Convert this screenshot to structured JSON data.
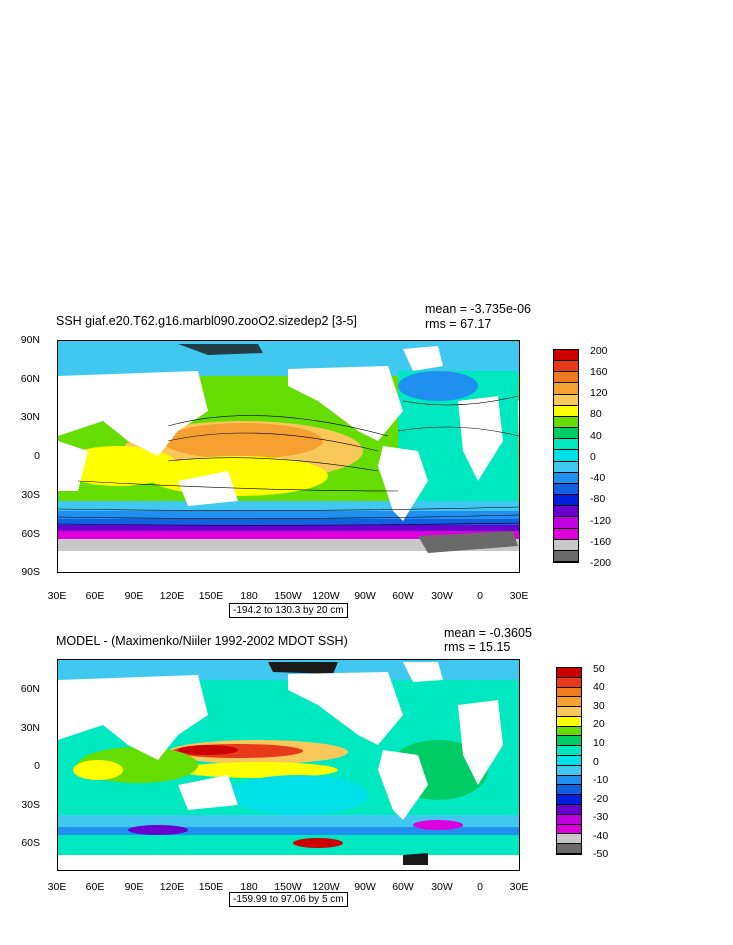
{
  "panels": [
    {
      "title": "SSH giaf.e20.T62.g16.marbl090.zooO2.sizedep2 [3-5]",
      "mean": "mean = -3.735e-06",
      "rms": "rms = 67.17",
      "yticks": [
        "90N",
        "60N",
        "30N",
        "0",
        "30S",
        "60S",
        "90S"
      ],
      "xticks": [
        "30E",
        "60E",
        "90E",
        "120E",
        "150E",
        "180",
        "150W",
        "120W",
        "90W",
        "60W",
        "30W",
        "0",
        "30E"
      ],
      "range_label": "-194.2 to 130.3 by 20 cm",
      "colorbar_labels": [
        "200",
        "160",
        "120",
        "80",
        "40",
        "0",
        "-40",
        "-80",
        "-120",
        "-160",
        "-200"
      ],
      "colorbar_colors": [
        "#cc0000",
        "#e83a1a",
        "#f07a1e",
        "#f5a030",
        "#f8c85a",
        "#ffff00",
        "#66dd00",
        "#00cc66",
        "#00e8c0",
        "#00e0e8",
        "#40c8f0",
        "#2090f0",
        "#1060e0",
        "#0020e0",
        "#6a00d0",
        "#c000e0",
        "#dd00dd",
        "#c8c8c8",
        "#6a6a6a"
      ]
    },
    {
      "title": "MODEL - (Maximenko/Niiler 1992-2002 MDOT SSH)",
      "mean": "mean = -0.3605",
      "rms": "rms = 15.15",
      "yticks": [
        "60N",
        "30N",
        "0",
        "30S",
        "60S"
      ],
      "xticks": [
        "30E",
        "60E",
        "90E",
        "120E",
        "150E",
        "180",
        "150W",
        "120W",
        "90W",
        "60W",
        "30W",
        "0",
        "30E"
      ],
      "range_label": "-159.99 to 97.06 by 5 cm",
      "colorbar_labels": [
        "50",
        "40",
        "30",
        "20",
        "10",
        "0",
        "-10",
        "-20",
        "-30",
        "-40",
        "-50"
      ],
      "colorbar_colors": [
        "#cc0000",
        "#e83a1a",
        "#f07a1e",
        "#f5a030",
        "#f8c85a",
        "#ffff00",
        "#66dd00",
        "#00cc66",
        "#00e8c0",
        "#00e0e8",
        "#40c8f0",
        "#2090f0",
        "#1060e0",
        "#0020e0",
        "#6a00d0",
        "#c000e0",
        "#dd00dd",
        "#c8c8c8",
        "#6a6a6a"
      ]
    }
  ]
}
